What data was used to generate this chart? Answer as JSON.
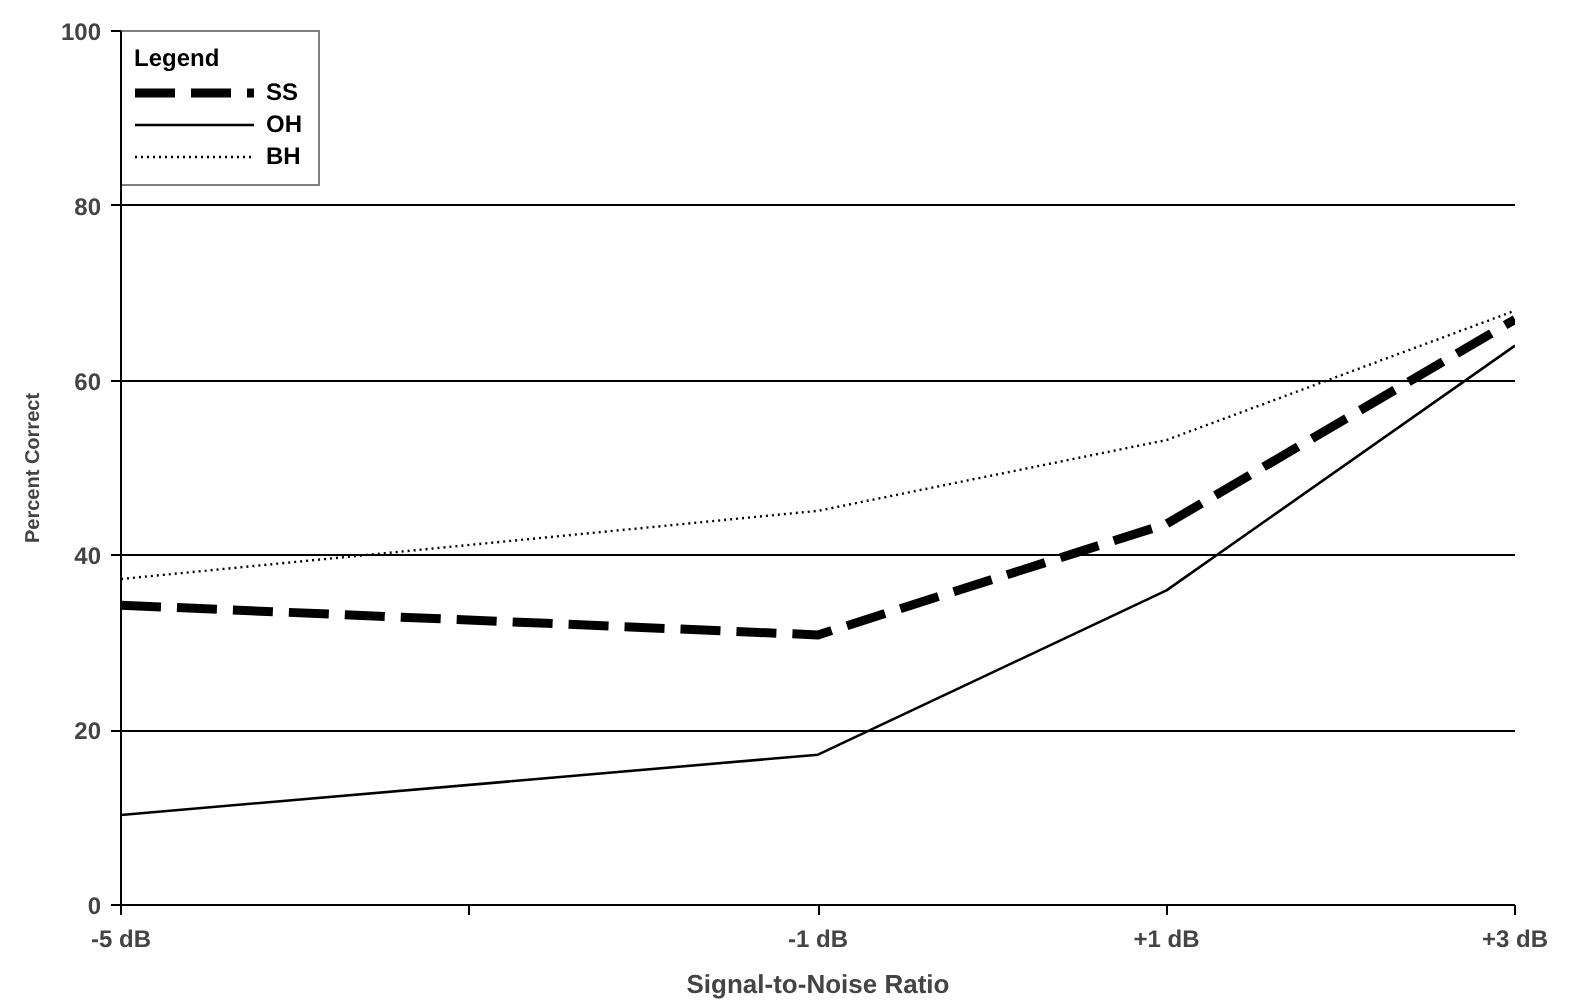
{
  "chart_data": {
    "type": "line",
    "xlabel": "Signal-to-Noise Ratio",
    "ylabel": "Percent Correct",
    "legend_title": "Legend",
    "legend": "top left",
    "grid": "y",
    "marker": "none",
    "x": [
      -5,
      -1,
      1,
      3
    ],
    "xlim": [
      -5,
      3
    ],
    "xticks": [
      {
        "value": -5,
        "label": "-5 dB"
      },
      {
        "value": -3,
        "label": null
      },
      {
        "value": -1,
        "label": "-1 dB"
      },
      {
        "value": 1,
        "label": "+1 dB"
      },
      {
        "value": 3,
        "label": "+3 dB"
      }
    ],
    "ylim": [
      0,
      100
    ],
    "yticks": [
      0,
      20,
      40,
      60,
      80,
      100
    ],
    "series": [
      {
        "name": "SS",
        "color": "#000000",
        "line_style": "dashed",
        "values": [
          34.3,
          30.9,
          43.6,
          67
        ]
      },
      {
        "name": "OH",
        "color": "#000000",
        "line_style": "solid",
        "values": [
          10.3,
          17.2,
          36,
          64
        ]
      },
      {
        "name": "BH",
        "color": "#000000",
        "line_style": "dotted",
        "values": [
          37.3,
          45.1,
          53.2,
          68
        ]
      }
    ]
  }
}
